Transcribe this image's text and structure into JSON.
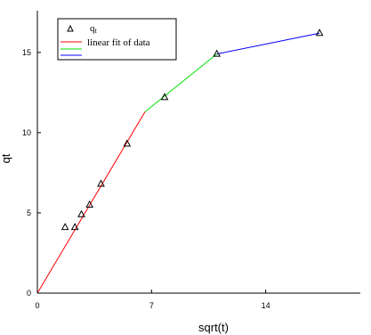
{
  "chart_data": {
    "type": "scatter",
    "xlabel": "sqrt(t)",
    "ylabel": "qt",
    "xlim": [
      0,
      19.8
    ],
    "ylim": [
      0,
      17.6
    ],
    "xticks": [
      0,
      7,
      14
    ],
    "yticks": [
      0,
      5,
      10,
      15
    ],
    "grid": false,
    "legend_position": "top-left",
    "legend": {
      "scatter_label_main": "q",
      "scatter_label_sub": "t",
      "fit_label": "linear fit of data"
    },
    "series": [
      {
        "kind": "scatter",
        "marker": "open-triangle",
        "color": "#000000",
        "x": [
          1.7,
          2.3,
          2.7,
          3.2,
          3.9,
          5.5,
          7.8,
          11.0,
          17.3
        ],
        "y": [
          4.1,
          4.1,
          4.9,
          5.5,
          6.8,
          9.3,
          12.2,
          14.9,
          16.2
        ]
      },
      {
        "kind": "line",
        "color": "#ff0000",
        "x": [
          0,
          6.6
        ],
        "y": [
          0,
          11.3
        ]
      },
      {
        "kind": "line",
        "color": "#00e000",
        "x": [
          6.6,
          11.0
        ],
        "y": [
          11.3,
          14.9
        ]
      },
      {
        "kind": "line",
        "color": "#0000ff",
        "x": [
          11.0,
          17.3
        ],
        "y": [
          14.9,
          16.2
        ]
      }
    ]
  }
}
